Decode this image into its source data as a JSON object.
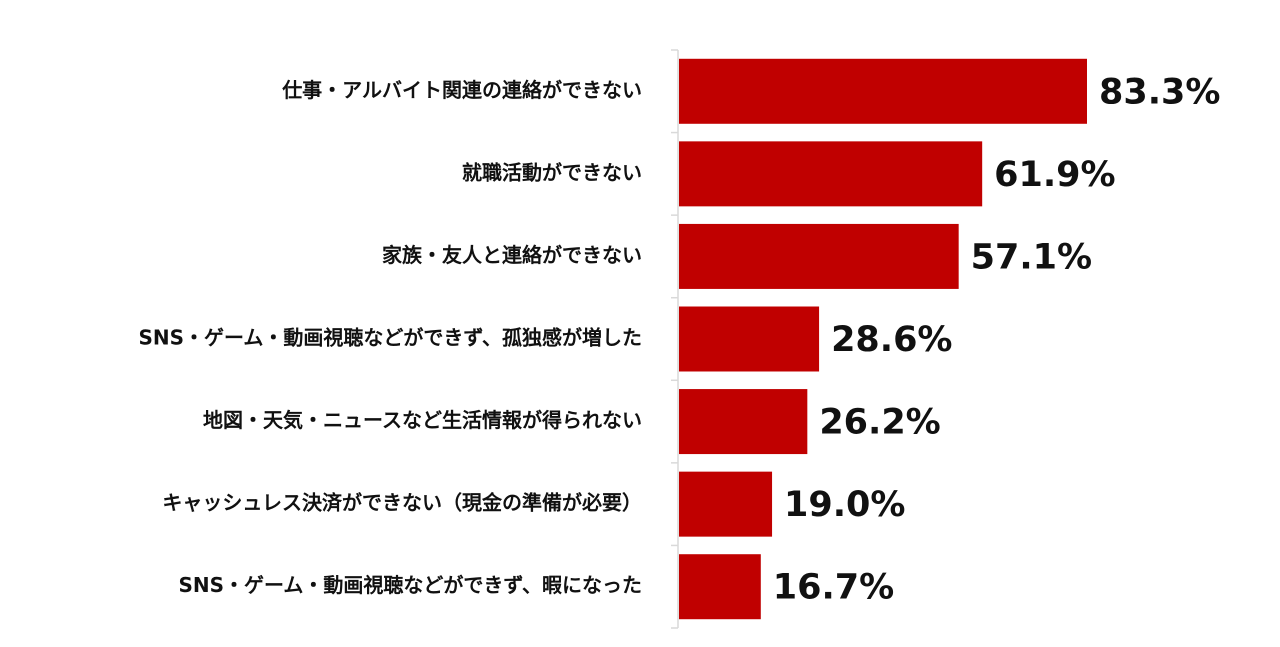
{
  "chart_data": {
    "type": "bar",
    "orientation": "horizontal",
    "title": "",
    "xlabel": "",
    "ylabel": "",
    "xlim": [
      0,
      100
    ],
    "grid": false,
    "legend": "none",
    "bar_color": "#C00000",
    "categories": [
      "仕事・アルバイト関連の連絡ができない",
      "就職活動ができない",
      "家族・友人と連絡ができない",
      "SNS・ゲーム・動画視聴などができず、孤独感が増した",
      "地図・天気・ニュースなど生活情報が得られない",
      "キャッシュレス決済ができない（現金の準備が必要）",
      "SNS・ゲーム・動画視聴などができず、暇になった"
    ],
    "values": [
      83.3,
      61.9,
      57.1,
      28.6,
      26.2,
      19.0,
      16.7
    ],
    "value_labels": [
      "83.3%",
      "61.9%",
      "57.1%",
      "28.6%",
      "26.2%",
      "19.0%",
      "16.7%"
    ]
  }
}
